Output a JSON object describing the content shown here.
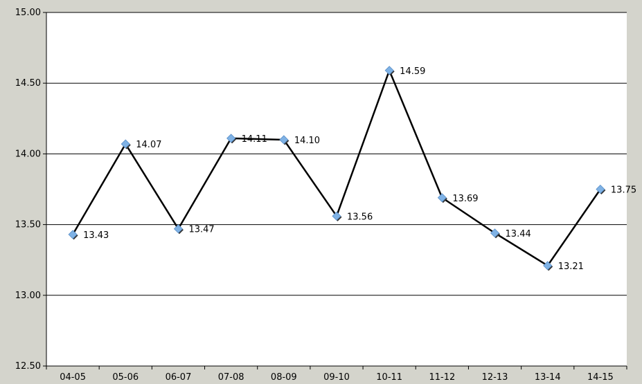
{
  "chart_data": {
    "type": "line",
    "categories": [
      "04-05",
      "05-06",
      "06-07",
      "07-08",
      "08-09",
      "09-10",
      "10-11",
      "11-12",
      "12-13",
      "13-14",
      "14-15"
    ],
    "series": [
      {
        "values": [
          13.43,
          14.07,
          13.47,
          14.11,
          14.1,
          13.56,
          14.59,
          13.69,
          13.44,
          13.21,
          13.75
        ],
        "data_labels": [
          "13.43",
          "14.07",
          "13.47",
          "14.11",
          "14.10",
          "13.56",
          "14.59",
          "13.69",
          "13.44",
          "13.21",
          "13.75"
        ],
        "line_color": "#000000",
        "marker_color": "#7fb2e5",
        "marker": "diamond"
      }
    ],
    "ylim": [
      12.5,
      15.0
    ],
    "y_ticks": [
      12.5,
      13.0,
      13.5,
      14.0,
      14.5,
      15.0
    ],
    "y_tick_labels": [
      "12.50",
      "13.00",
      "13.50",
      "14.00",
      "14.50",
      "15.00"
    ],
    "grid": "horizontal",
    "legend": "none",
    "plot_background": "#ffffff",
    "page_background": "#d4d4cc"
  }
}
